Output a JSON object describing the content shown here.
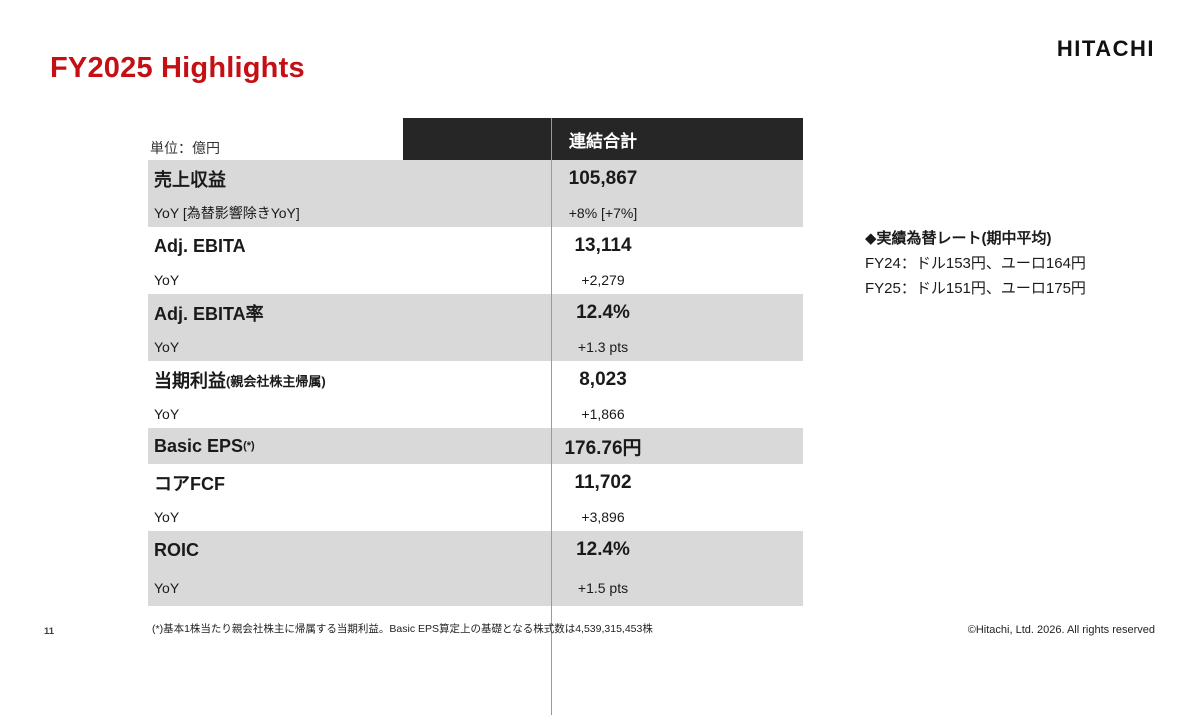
{
  "colors": {
    "accent_red": "#C40F14",
    "header_bg": "#262626",
    "header_text": "#ffffff",
    "row_gray": "#D9D9D9",
    "text": "#1a1a1a",
    "divider": "#9a9a9a"
  },
  "slide": {
    "title": "FY2025 Highlights",
    "logo": "HITACHI",
    "page_number": "11",
    "footnote": "(*)基本1株当たり親会社株主に帰属する当期利益。Basic EPS算定上の基礎となる株式数は4,539,315,453株",
    "copyright": "©Hitachi, Ltd. 2026. All rights reserved"
  },
  "table": {
    "unit_label": "単位：億円",
    "header": "連結合計",
    "rows": [
      {
        "label": "売上収益",
        "value": "105,867"
      },
      {
        "label": "YoY [為替影響除きYoY]",
        "value": "+8% [+7%]"
      },
      {
        "label": "Adj. EBITA",
        "value": "13,114"
      },
      {
        "label": "YoY",
        "value": "+2,279"
      },
      {
        "label": "Adj. EBITA率",
        "value": "12.4%"
      },
      {
        "label": "YoY",
        "value": "+1.3 pts"
      },
      {
        "label": "当期利益",
        "label_note": "(親会社株主帰属)",
        "value": "8,023"
      },
      {
        "label": "YoY",
        "value": "+1,866"
      },
      {
        "label": "Basic EPS",
        "label_sup": "(*)",
        "value": "176.76円"
      },
      {
        "label": "コアFCF",
        "value": "11,702"
      },
      {
        "label": "YoY",
        "value": "+3,896"
      },
      {
        "label": "ROIC",
        "value": "12.4%"
      },
      {
        "label": "YoY",
        "value": "+1.5 pts"
      }
    ]
  },
  "fx_note": {
    "title": "◆実績為替レート(期中平均)",
    "line_fy24": "FY24：ドル153円、ユーロ164円",
    "line_fy25": "FY25：ドル151円、ユーロ175円"
  }
}
